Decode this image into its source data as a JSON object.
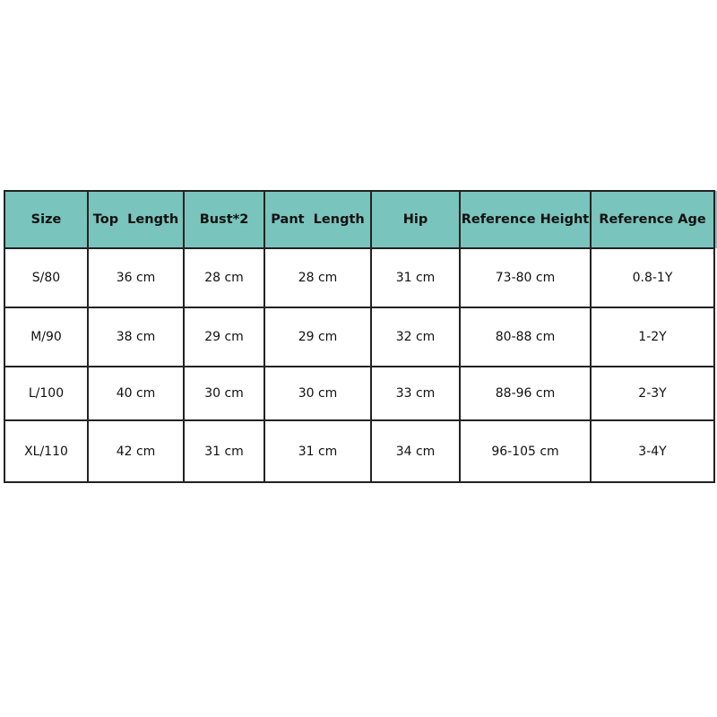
{
  "colors": {
    "header_bg": "#79c4bc",
    "border": "#222222"
  },
  "headers": [
    "Size",
    "Top  Length",
    "Bust*2",
    "Pant  Length",
    "Hip",
    "Reference Height",
    "Reference Age"
  ],
  "rows": [
    [
      "S/80",
      "36 cm",
      "28 cm",
      "28 cm",
      "31 cm",
      "73-80 cm",
      "0.8-1Y"
    ],
    [
      "M/90",
      "38 cm",
      "29 cm",
      "29 cm",
      "32 cm",
      "80-88 cm",
      "1-2Y"
    ],
    [
      "L/100",
      "40 cm",
      "30 cm",
      "30 cm",
      "33 cm",
      "88-96 cm",
      "2-3Y"
    ],
    [
      "XL/110",
      "42 cm",
      "31 cm",
      "31 cm",
      "34 cm",
      "96-105 cm",
      "3-4Y"
    ]
  ]
}
